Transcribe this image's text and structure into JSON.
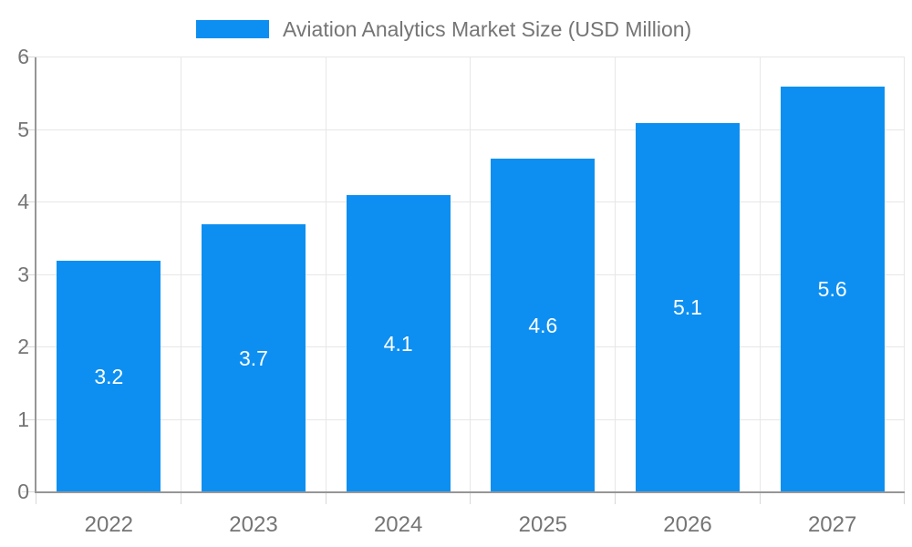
{
  "legend": {
    "label": "Aviation Analytics Market Size (USD Million)"
  },
  "chart_data": {
    "type": "bar",
    "title": "Aviation Analytics Market Size (USD Million)",
    "series_name": "Aviation Analytics Market Size (USD Million)",
    "categories": [
      "2022",
      "2023",
      "2024",
      "2025",
      "2026",
      "2027"
    ],
    "values": [
      3.2,
      3.7,
      4.1,
      4.6,
      5.1,
      5.6
    ],
    "value_labels": [
      "3.2",
      "3.7",
      "4.1",
      "4.6",
      "5.1",
      "5.6"
    ],
    "xlabel": "",
    "ylabel": "",
    "ylim": [
      0,
      6
    ],
    "y_ticks": [
      0,
      1,
      2,
      3,
      4,
      5,
      6
    ],
    "grid": true,
    "legend_position": "top"
  },
  "colors": {
    "bar": "#0d8ff2",
    "grid": "#e7e7e7",
    "tick": "#d8d8d8",
    "axis": "#969696",
    "text": "#757575",
    "value_label": "#ffffff",
    "background": "#ffffff"
  }
}
